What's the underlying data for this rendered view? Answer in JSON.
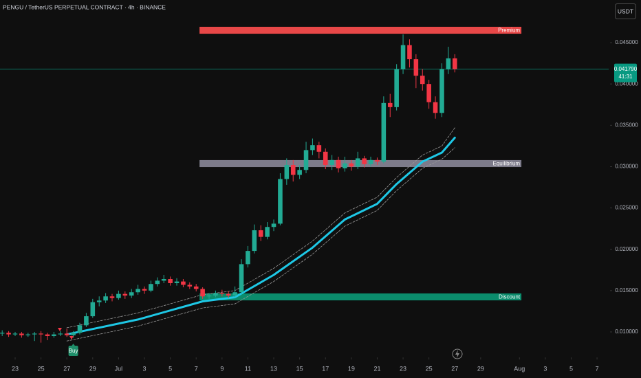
{
  "chart_data": {
    "type": "candlestick",
    "title": "PENGU / TetherUS PERPETUAL CONTRACT · 4h · BINANCE",
    "currency": "USDT",
    "up_color": "#22ab94",
    "down_color": "#f23645",
    "xlim": [
      21.83,
      68.9
    ],
    "ylim": [
      0.00692,
      0.05016
    ],
    "xticks": [
      23,
      25,
      27,
      29,
      {
        "value": 31,
        "label": "Jul"
      },
      {
        "value": 33,
        "label": "3"
      },
      {
        "value": 35,
        "label": "5"
      },
      {
        "value": 37,
        "label": "7"
      },
      {
        "value": 39,
        "label": "9"
      },
      {
        "value": 41,
        "label": "11"
      },
      {
        "value": 43,
        "label": "13"
      },
      {
        "value": 45,
        "label": "15"
      },
      {
        "value": 47,
        "label": "17"
      },
      {
        "value": 49,
        "label": "19"
      },
      {
        "value": 51,
        "label": "21"
      },
      {
        "value": 53,
        "label": "23"
      },
      {
        "value": 55,
        "label": "25"
      },
      {
        "value": 57,
        "label": "27"
      },
      {
        "value": 59,
        "label": "29"
      },
      {
        "value": 62,
        "label": "Aug"
      },
      {
        "value": 64,
        "label": "3"
      },
      {
        "value": 66,
        "label": "5"
      },
      {
        "value": 68,
        "label": "7"
      }
    ],
    "yticks": [
      {
        "value": 0.01,
        "label": "0.010000"
      },
      {
        "value": 0.015,
        "label": "0.015000"
      },
      {
        "value": 0.02,
        "label": "0.020000"
      },
      {
        "value": 0.025,
        "label": "0.025000"
      },
      {
        "value": 0.03,
        "label": "0.030000"
      },
      {
        "value": 0.035,
        "label": "0.035000"
      },
      {
        "value": 0.04,
        "label": "0.040000"
      },
      {
        "value": 0.045,
        "label": "0.045000"
      }
    ],
    "x": [
      22,
      22.5,
      23,
      23.5,
      24,
      24.5,
      25,
      25.5,
      26,
      26.5,
      27,
      27.5,
      28,
      28.5,
      29,
      29.5,
      30,
      30.5,
      31,
      31.5,
      32,
      32.5,
      33,
      33.5,
      34,
      34.5,
      35,
      35.5,
      36,
      36.5,
      37,
      37.5,
      38,
      38.5,
      39,
      39.5,
      40,
      40.5,
      41,
      41.5,
      42,
      42.5,
      43,
      43.5,
      44,
      44.5,
      45,
      45.5,
      46,
      46.5,
      47,
      47.5,
      48,
      48.5,
      49,
      49.5,
      50,
      50.5,
      51,
      51.5,
      52,
      52.5,
      53,
      53.5,
      54,
      54.5,
      55,
      55.5,
      56,
      56.5,
      57
    ],
    "open": [
      0.0098,
      0.0099,
      0.0097,
      0.0098,
      0.0096,
      0.0097,
      0.0098,
      0.0097,
      0.0095,
      0.0097,
      0.0098,
      0.0096,
      0.0099,
      0.0108,
      0.0119,
      0.0136,
      0.0138,
      0.0143,
      0.0141,
      0.0146,
      0.0144,
      0.0148,
      0.0152,
      0.015,
      0.0158,
      0.0162,
      0.0164,
      0.0159,
      0.0161,
      0.0157,
      0.0155,
      0.0152,
      0.0143,
      0.0144,
      0.0147,
      0.0146,
      0.0144,
      0.0148,
      0.0182,
      0.0198,
      0.0223,
      0.0215,
      0.0227,
      0.0231,
      0.0285,
      0.0302,
      0.029,
      0.0296,
      0.032,
      0.0326,
      0.0318,
      0.0302,
      0.0308,
      0.0298,
      0.0304,
      0.03,
      0.031,
      0.0303,
      0.0308,
      0.0306,
      0.0377,
      0.0372,
      0.0418,
      0.0447,
      0.043,
      0.041,
      0.04,
      0.0378,
      0.0365,
      0.0418,
      0.0431
    ],
    "high": [
      0.0102,
      0.0101,
      0.01,
      0.01,
      0.0099,
      0.01,
      0.0101,
      0.0099,
      0.01,
      0.0101,
      0.0104,
      0.0101,
      0.0111,
      0.0123,
      0.014,
      0.0143,
      0.0147,
      0.0146,
      0.015,
      0.0149,
      0.0152,
      0.0157,
      0.0155,
      0.0162,
      0.0166,
      0.0169,
      0.0167,
      0.0165,
      0.0164,
      0.016,
      0.0158,
      0.0154,
      0.0147,
      0.015,
      0.0151,
      0.0149,
      0.0155,
      0.0188,
      0.0204,
      0.023,
      0.0229,
      0.0233,
      0.0236,
      0.0292,
      0.031,
      0.0308,
      0.0302,
      0.033,
      0.0334,
      0.033,
      0.0322,
      0.0314,
      0.0312,
      0.0312,
      0.0308,
      0.0318,
      0.0313,
      0.0312,
      0.0311,
      0.0385,
      0.0388,
      0.0424,
      0.046,
      0.0454,
      0.0436,
      0.0418,
      0.0405,
      0.0385,
      0.0425,
      0.0445,
      0.0436
    ],
    "low": [
      0.0095,
      0.0094,
      0.0095,
      0.0093,
      0.0094,
      0.0089,
      0.0087,
      0.009,
      0.0093,
      0.0095,
      0.0094,
      0.0093,
      0.0097,
      0.0106,
      0.0117,
      0.0131,
      0.0135,
      0.0137,
      0.0139,
      0.014,
      0.0141,
      0.0145,
      0.0146,
      0.0148,
      0.0155,
      0.0159,
      0.0156,
      0.0156,
      0.0154,
      0.0152,
      0.0149,
      0.014,
      0.014,
      0.0142,
      0.0143,
      0.0141,
      0.0142,
      0.0146,
      0.0178,
      0.0195,
      0.021,
      0.0212,
      0.0222,
      0.0229,
      0.0278,
      0.0282,
      0.0285,
      0.0292,
      0.0314,
      0.031,
      0.0297,
      0.0296,
      0.0293,
      0.0294,
      0.0295,
      0.0297,
      0.0299,
      0.03,
      0.0302,
      0.0304,
      0.036,
      0.0368,
      0.0412,
      0.042,
      0.0395,
      0.0392,
      0.037,
      0.0358,
      0.036,
      0.0412,
      0.0414
    ],
    "close": [
      0.0099,
      0.0097,
      0.0098,
      0.0096,
      0.0097,
      0.0098,
      0.0097,
      0.0095,
      0.0097,
      0.0098,
      0.0096,
      0.0099,
      0.0108,
      0.0119,
      0.0136,
      0.0138,
      0.0143,
      0.0141,
      0.0146,
      0.0144,
      0.0148,
      0.0152,
      0.015,
      0.0158,
      0.0162,
      0.0164,
      0.0159,
      0.0161,
      0.0157,
      0.0155,
      0.0152,
      0.0143,
      0.0144,
      0.0147,
      0.0146,
      0.0144,
      0.0148,
      0.0182,
      0.0198,
      0.0223,
      0.0215,
      0.0227,
      0.0231,
      0.0285,
      0.0302,
      0.029,
      0.0296,
      0.032,
      0.0326,
      0.0318,
      0.0302,
      0.0308,
      0.0298,
      0.0304,
      0.03,
      0.031,
      0.0303,
      0.0308,
      0.0306,
      0.0377,
      0.0372,
      0.0418,
      0.0447,
      0.043,
      0.041,
      0.04,
      0.0378,
      0.0365,
      0.0418,
      0.0431,
      0.0418
    ],
    "lines": [
      {
        "x": [
          27,
          32.5,
          37.5,
          40,
          43,
          46,
          48.5,
          51,
          52.5,
          54.5,
          56,
          57
        ],
        "values": [
          0.0105,
          0.0123,
          0.0145,
          0.015,
          0.0177,
          0.021,
          0.0244,
          0.0263,
          0.0287,
          0.0314,
          0.0325,
          0.0347
        ],
        "color": "#9a9a9a",
        "style": "dashed"
      },
      {
        "x": [
          27,
          32.5,
          37.5,
          40,
          43,
          46,
          48.5,
          51,
          52.5,
          54.5,
          56,
          57
        ],
        "values": [
          0.0089,
          0.0107,
          0.0129,
          0.0134,
          0.0161,
          0.0194,
          0.0228,
          0.0247,
          0.0271,
          0.0298,
          0.0309,
          0.0323
        ],
        "color": "#9a9a9a",
        "style": "dashed"
      },
      {
        "x": [
          27,
          32.5,
          37.5,
          40,
          43,
          46,
          48.5,
          51,
          52.5,
          54.5,
          56,
          57
        ],
        "values": [
          0.0097,
          0.0115,
          0.0137,
          0.0142,
          0.0169,
          0.0202,
          0.0236,
          0.0255,
          0.0279,
          0.0306,
          0.0317,
          0.0335
        ],
        "color": "#1ec8e6",
        "style": "solid"
      }
    ],
    "zones": [
      {
        "label": "Premium",
        "x": [
          37.26,
          62.15
        ],
        "y": [
          0.04608,
          0.04692
        ],
        "color": "#e84848"
      },
      {
        "label": "Equilibrium",
        "x": [
          37.26,
          62.15
        ],
        "y": [
          0.02995,
          0.03079
        ],
        "color": "#7d7b8a"
      },
      {
        "label": "Discount",
        "x": [
          37.26,
          62.15
        ],
        "y": [
          0.01382,
          0.01466
        ],
        "color": "#0b8c6c"
      }
    ],
    "last_price": {
      "value": 0.04179,
      "label": "0.041790",
      "countdown": "41:31",
      "color": "#089981"
    },
    "signals": [
      {
        "label": "Buy",
        "x": 27.5,
        "color": "#1f8f6a"
      }
    ]
  }
}
